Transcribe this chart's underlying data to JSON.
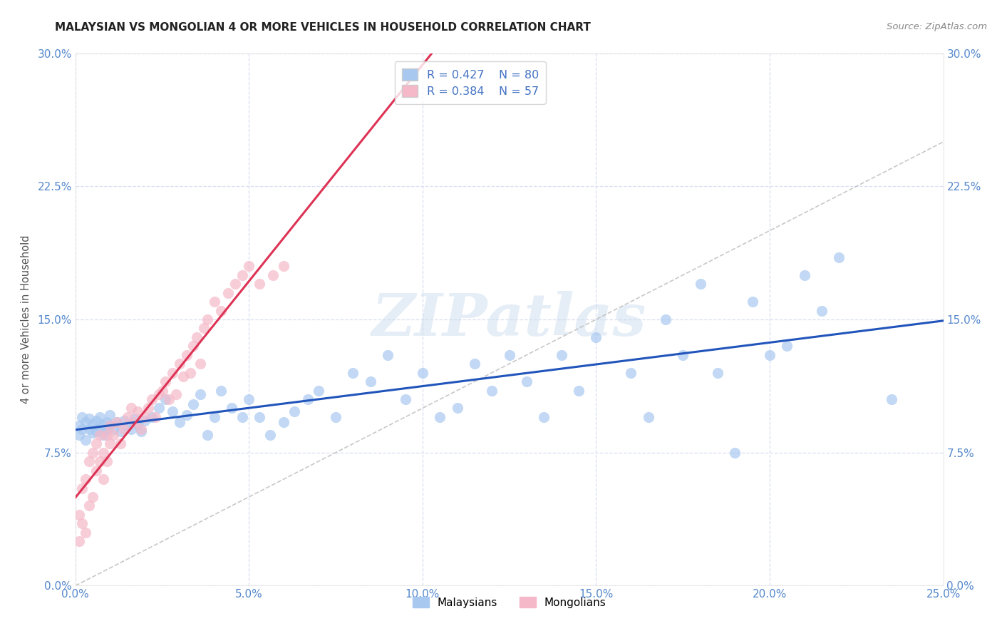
{
  "title": "MALAYSIAN VS MONGOLIAN 4 OR MORE VEHICLES IN HOUSEHOLD CORRELATION CHART",
  "source": "Source: ZipAtlas.com",
  "ylabel_label": "4 or more Vehicles in Household",
  "watermark": "ZIPatlas",
  "legend_r_malaysian": "R = 0.427",
  "legend_n_malaysian": "N = 80",
  "legend_r_mongolian": "R = 0.384",
  "legend_n_mongolian": "N = 57",
  "malaysian_color": "#a8c8f0",
  "mongolian_color": "#f5b8c8",
  "trend_malaysian_color": "#2255bb",
  "trend_mongolian_color": "#dd3355",
  "diagonal_color": "#bbbbbb",
  "background_color": "#ffffff",
  "grid_color": "#d8dff0",
  "tick_color": "#5588cc",
  "xlim": [
    0.0,
    0.25
  ],
  "ylim": [
    0.0,
    0.3
  ],
  "malaysian_x": [
    0.001,
    0.001,
    0.002,
    0.002,
    0.003,
    0.003,
    0.004,
    0.004,
    0.005,
    0.005,
    0.006,
    0.006,
    0.007,
    0.007,
    0.008,
    0.008,
    0.009,
    0.009,
    0.01,
    0.01,
    0.011,
    0.012,
    0.013,
    0.014,
    0.015,
    0.016,
    0.017,
    0.018,
    0.019,
    0.02,
    0.022,
    0.024,
    0.026,
    0.028,
    0.03,
    0.032,
    0.034,
    0.036,
    0.038,
    0.04,
    0.042,
    0.045,
    0.048,
    0.05,
    0.053,
    0.056,
    0.06,
    0.063,
    0.067,
    0.07,
    0.075,
    0.08,
    0.085,
    0.09,
    0.095,
    0.1,
    0.105,
    0.11,
    0.115,
    0.12,
    0.125,
    0.13,
    0.135,
    0.14,
    0.145,
    0.15,
    0.16,
    0.165,
    0.17,
    0.175,
    0.18,
    0.185,
    0.19,
    0.195,
    0.2,
    0.205,
    0.21,
    0.215,
    0.22,
    0.235
  ],
  "malaysian_y": [
    0.09,
    0.085,
    0.095,
    0.088,
    0.092,
    0.082,
    0.088,
    0.094,
    0.091,
    0.086,
    0.093,
    0.087,
    0.089,
    0.095,
    0.091,
    0.085,
    0.092,
    0.088,
    0.096,
    0.09,
    0.088,
    0.092,
    0.087,
    0.093,
    0.09,
    0.088,
    0.094,
    0.091,
    0.087,
    0.093,
    0.095,
    0.1,
    0.105,
    0.098,
    0.092,
    0.096,
    0.102,
    0.108,
    0.085,
    0.095,
    0.11,
    0.1,
    0.095,
    0.105,
    0.095,
    0.085,
    0.092,
    0.098,
    0.105,
    0.11,
    0.095,
    0.12,
    0.115,
    0.13,
    0.105,
    0.12,
    0.095,
    0.1,
    0.125,
    0.11,
    0.13,
    0.115,
    0.095,
    0.13,
    0.11,
    0.14,
    0.12,
    0.095,
    0.15,
    0.13,
    0.17,
    0.12,
    0.075,
    0.16,
    0.13,
    0.135,
    0.175,
    0.155,
    0.185,
    0.105
  ],
  "mongolian_x": [
    0.001,
    0.001,
    0.002,
    0.002,
    0.003,
    0.003,
    0.004,
    0.004,
    0.005,
    0.005,
    0.006,
    0.006,
    0.007,
    0.007,
    0.008,
    0.008,
    0.009,
    0.009,
    0.01,
    0.01,
    0.011,
    0.012,
    0.013,
    0.014,
    0.015,
    0.016,
    0.017,
    0.018,
    0.019,
    0.02,
    0.021,
    0.022,
    0.023,
    0.024,
    0.025,
    0.026,
    0.027,
    0.028,
    0.029,
    0.03,
    0.031,
    0.032,
    0.033,
    0.034,
    0.035,
    0.036,
    0.037,
    0.038,
    0.04,
    0.042,
    0.044,
    0.046,
    0.048,
    0.05,
    0.053,
    0.057,
    0.06
  ],
  "mongolian_y": [
    0.04,
    0.025,
    0.055,
    0.035,
    0.06,
    0.03,
    0.045,
    0.07,
    0.075,
    0.05,
    0.065,
    0.08,
    0.07,
    0.085,
    0.075,
    0.06,
    0.085,
    0.07,
    0.09,
    0.08,
    0.085,
    0.092,
    0.08,
    0.088,
    0.095,
    0.1,
    0.092,
    0.098,
    0.088,
    0.095,
    0.1,
    0.105,
    0.095,
    0.108,
    0.11,
    0.115,
    0.105,
    0.12,
    0.108,
    0.125,
    0.118,
    0.13,
    0.12,
    0.135,
    0.14,
    0.125,
    0.145,
    0.15,
    0.16,
    0.155,
    0.165,
    0.17,
    0.175,
    0.18,
    0.17,
    0.175,
    0.18
  ]
}
